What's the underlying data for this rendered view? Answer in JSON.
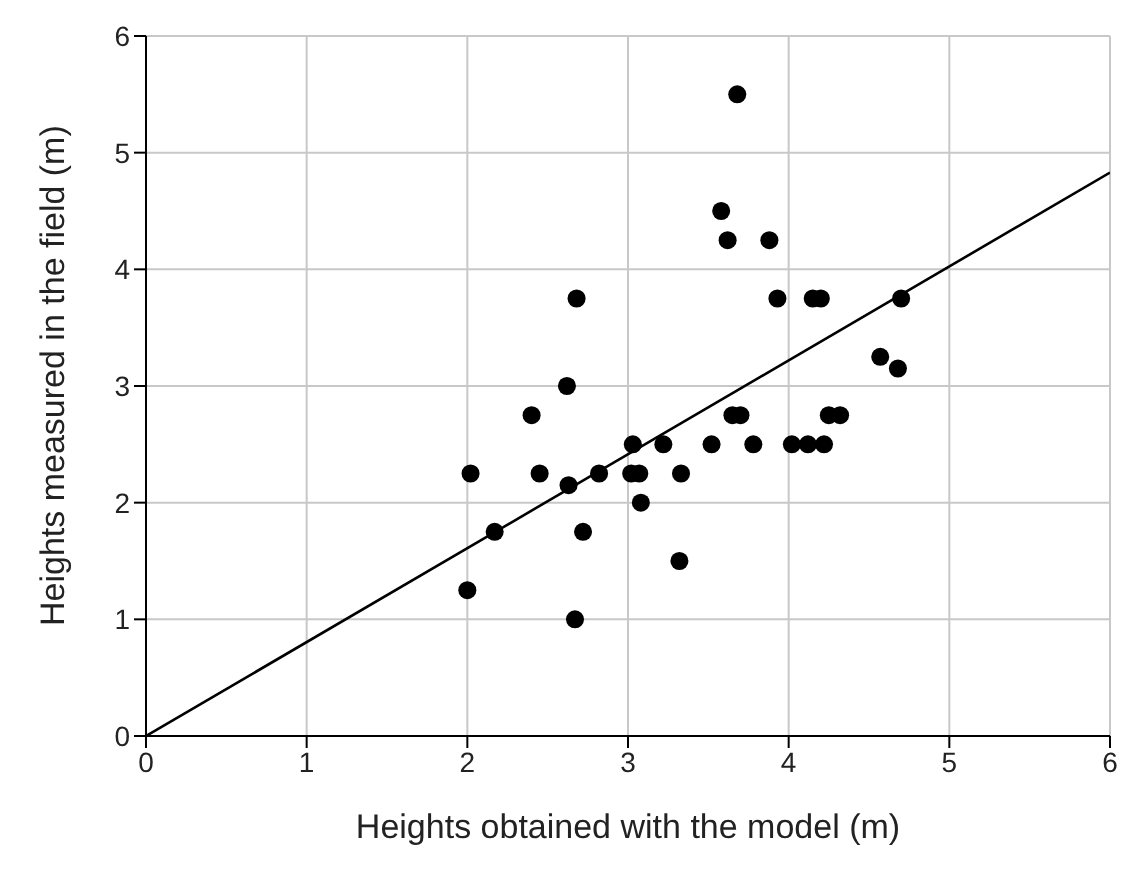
{
  "chart_data": {
    "type": "scatter",
    "xlabel": "Heights obtained with the model (m)",
    "ylabel": "Heights measured in the field (m)",
    "xlim": [
      0,
      6
    ],
    "ylim": [
      0,
      6
    ],
    "xticks": [
      0,
      1,
      2,
      3,
      4,
      5,
      6
    ],
    "yticks": [
      0,
      1,
      2,
      3,
      4,
      5,
      6
    ],
    "grid": true,
    "marker": "circle",
    "series": [
      {
        "color": "#000000",
        "x": [
          2.0,
          2.02,
          2.17,
          2.4,
          2.45,
          2.62,
          2.63,
          2.68,
          2.67,
          2.72,
          2.82,
          3.02,
          3.03,
          3.07,
          3.08,
          3.22,
          3.33,
          3.32,
          3.52,
          3.58,
          3.62,
          3.65,
          3.68,
          3.7,
          3.78,
          3.88,
          3.93,
          4.02,
          4.12,
          4.15,
          4.2,
          4.22,
          4.25,
          4.32,
          4.57,
          4.68,
          4.7
        ],
        "values": [
          1.25,
          2.25,
          1.75,
          2.75,
          2.25,
          3.0,
          2.15,
          3.75,
          1.0,
          1.75,
          2.25,
          2.25,
          2.5,
          2.25,
          2.0,
          2.5,
          2.25,
          1.5,
          2.5,
          4.5,
          4.25,
          2.75,
          5.5,
          2.75,
          2.5,
          4.25,
          3.75,
          2.5,
          2.5,
          3.75,
          3.75,
          2.5,
          2.75,
          2.75,
          3.25,
          3.15,
          3.75
        ]
      },
      {
        "type": "line",
        "color": "#000000",
        "marker": "none",
        "line_style": "solid",
        "x": [
          0,
          6
        ],
        "values": [
          0,
          4.83
        ]
      }
    ]
  }
}
